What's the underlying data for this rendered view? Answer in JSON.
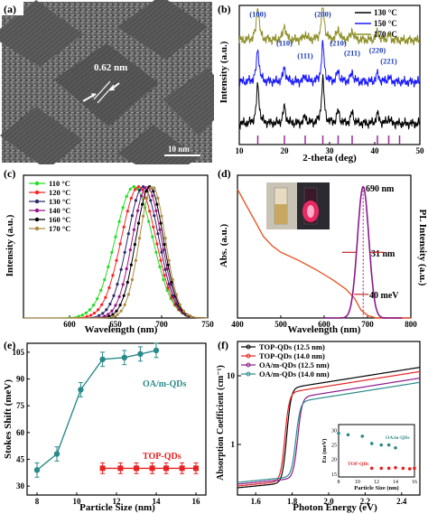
{
  "panels": {
    "a": {
      "label": "(a)",
      "lattice_text": "0.62 nm",
      "scale_text": "10 nm"
    },
    "b": {
      "label": "(b)"
    },
    "c": {
      "label": "(c)"
    },
    "d": {
      "label": "(d)",
      "peak_label": "690 nm",
      "fwhm_label": "31 nm",
      "stokes_label": "40 meV"
    },
    "e": {
      "label": "(e)"
    },
    "f": {
      "label": "(f)"
    }
  },
  "chart_data": [
    {
      "panel": "b",
      "type": "line",
      "xlabel": "2-theta (deg)",
      "ylabel": "Intensity (a.u.)",
      "xlim": [
        10,
        50
      ],
      "xticks": [
        10,
        20,
        30,
        40,
        50
      ],
      "legend_position": "top-right",
      "series": [
        {
          "name": "130 °C",
          "color": "#000000",
          "offset": 0.15
        },
        {
          "name": "150 °C",
          "color": "#1a1aff",
          "offset": 0.45
        },
        {
          "name": "170 °C",
          "color": "#8f8f2a",
          "offset": 0.75
        }
      ],
      "peaks": [
        {
          "label": "(100)",
          "x": 14.1,
          "h": 0.28
        },
        {
          "label": "(110)",
          "x": 20.0,
          "h": 0.12
        },
        {
          "label": "(111)",
          "x": 24.6,
          "h": 0.05
        },
        {
          "label": "(200)",
          "x": 28.5,
          "h": 0.32
        },
        {
          "label": "(210)",
          "x": 31.9,
          "h": 0.09
        },
        {
          "label": "(211)",
          "x": 35.0,
          "h": 0.08
        },
        {
          "label": "(220)",
          "x": 40.6,
          "h": 0.07
        },
        {
          "label": "(221)",
          "x": 43.1,
          "h": 0.04
        }
      ],
      "reference_lines": [
        14.1,
        20.0,
        24.6,
        28.5,
        31.9,
        35.0,
        40.6,
        43.1,
        45.5
      ]
    },
    {
      "panel": "c",
      "type": "line",
      "xlabel": "Wavelength (nm)",
      "ylabel": "Intensity (a.u.)",
      "xlim": [
        550,
        750
      ],
      "xticks": [
        600,
        650,
        700,
        750
      ],
      "legend_position": "top-left",
      "series": [
        {
          "name": "110 °C",
          "color": "#22dd22",
          "peak": 670,
          "fwhm": 48
        },
        {
          "name": "120 °C",
          "color": "#ff2222",
          "peak": 675,
          "fwhm": 44
        },
        {
          "name": "130 °C",
          "color": "#2a2a6a",
          "peak": 680,
          "fwhm": 40
        },
        {
          "name": "140 °C",
          "color": "#991188",
          "peak": 684,
          "fwhm": 37
        },
        {
          "name": "160 °C",
          "color": "#000000",
          "peak": 687,
          "fwhm": 35
        },
        {
          "name": "170 °C",
          "color": "#b08a40",
          "peak": 690,
          "fwhm": 33
        }
      ]
    },
    {
      "panel": "d",
      "type": "line",
      "xlabel": "Wavelength (nm)",
      "ylabel_left": "Abs. (a.u.)",
      "ylabel_right": "PL Intensity (a.u.)",
      "xlim": [
        400,
        800
      ],
      "xticks": [
        400,
        500,
        600,
        700,
        800
      ],
      "pl": {
        "peak": 690,
        "fwhm": 31,
        "color": "#8a1a8a"
      },
      "abs_color": "#e85a2a",
      "abs_points": [
        [
          400,
          0.98
        ],
        [
          420,
          0.86
        ],
        [
          440,
          0.74
        ],
        [
          460,
          0.62
        ],
        [
          480,
          0.55
        ],
        [
          500,
          0.5
        ],
        [
          540,
          0.44
        ],
        [
          580,
          0.37
        ],
        [
          620,
          0.29
        ],
        [
          650,
          0.22
        ],
        [
          670,
          0.15
        ],
        [
          685,
          0.06
        ],
        [
          700,
          0.02
        ],
        [
          720,
          0.0
        ],
        [
          800,
          0.0
        ]
      ]
    },
    {
      "panel": "e",
      "type": "scatter",
      "xlabel": "Particle Size (nm)",
      "ylabel": "Stokes Shift (meV)",
      "xlim": [
        7.5,
        16.5
      ],
      "ylim": [
        25,
        110
      ],
      "xticks": [
        8,
        10,
        12,
        14,
        16
      ],
      "yticks": [
        30,
        45,
        60,
        75,
        90,
        105
      ],
      "series": [
        {
          "name": "OA/m-QDs",
          "color": "#2a8a8a",
          "x": [
            8,
            9,
            10.2,
            11.3,
            12.4,
            13.2,
            14
          ],
          "y": [
            39,
            48,
            84,
            101,
            102,
            104,
            106
          ],
          "err": [
            4,
            4,
            4,
            4,
            4,
            4,
            4
          ]
        },
        {
          "name": "TOP-QDs",
          "color": "#e82222",
          "x": [
            11.3,
            12.2,
            13,
            13.8,
            14.5,
            15.3,
            16
          ],
          "y": [
            40,
            40,
            40,
            40,
            40,
            40,
            40
          ],
          "err": [
            3,
            3,
            3,
            3,
            3,
            3,
            3
          ]
        }
      ]
    },
    {
      "panel": "f",
      "type": "line",
      "xlabel": "Photon Energy (eV)",
      "ylabel": "Absorption Coefficient (cm⁻¹)",
      "xlim": [
        1.5,
        2.5
      ],
      "xticks": [
        1.6,
        1.8,
        2.0,
        2.2,
        2.4
      ],
      "ytick_labels": [
        "1",
        "10"
      ],
      "series": [
        {
          "name": "TOP-QDs (12.5 nm)",
          "color": "#000000",
          "edge": 1.77
        },
        {
          "name": "TOP-QDs (14.0 nm)",
          "color": "#e82222",
          "edge": 1.76
        },
        {
          "name": "OA/m-QDs (12.5 nm)",
          "color": "#8a1a8a",
          "edge": 1.83
        },
        {
          "name": "OA/m-QDs (14.0 nm)",
          "color": "#2a8a8a",
          "edge": 1.82
        }
      ],
      "inset": {
        "xlabel": "Particle Size (nm)",
        "ylabel": "Eu (meV)",
        "xlim": [
          8,
          16
        ],
        "ylim": [
          14,
          32
        ],
        "xticks": [
          8,
          10,
          12,
          14,
          16
        ],
        "yticks": [
          15,
          20,
          25,
          30
        ],
        "series": [
          {
            "name": "OA/m-QDs",
            "color": "#2a8a8a",
            "x": [
              8,
              9,
              10.5,
              11.5,
              12.5,
              13.3,
              14
            ],
            "y": [
              29,
              28.5,
              28,
              25.5,
              25,
              25,
              24
            ]
          },
          {
            "name": "TOP-QDs",
            "color": "#e82222",
            "x": [
              11.5,
              12.5,
              13.3,
              14,
              14.8,
              15.5,
              16
            ],
            "y": [
              17,
              17,
              17,
              17.2,
              17,
              16.8,
              17
            ]
          }
        ]
      }
    }
  ]
}
